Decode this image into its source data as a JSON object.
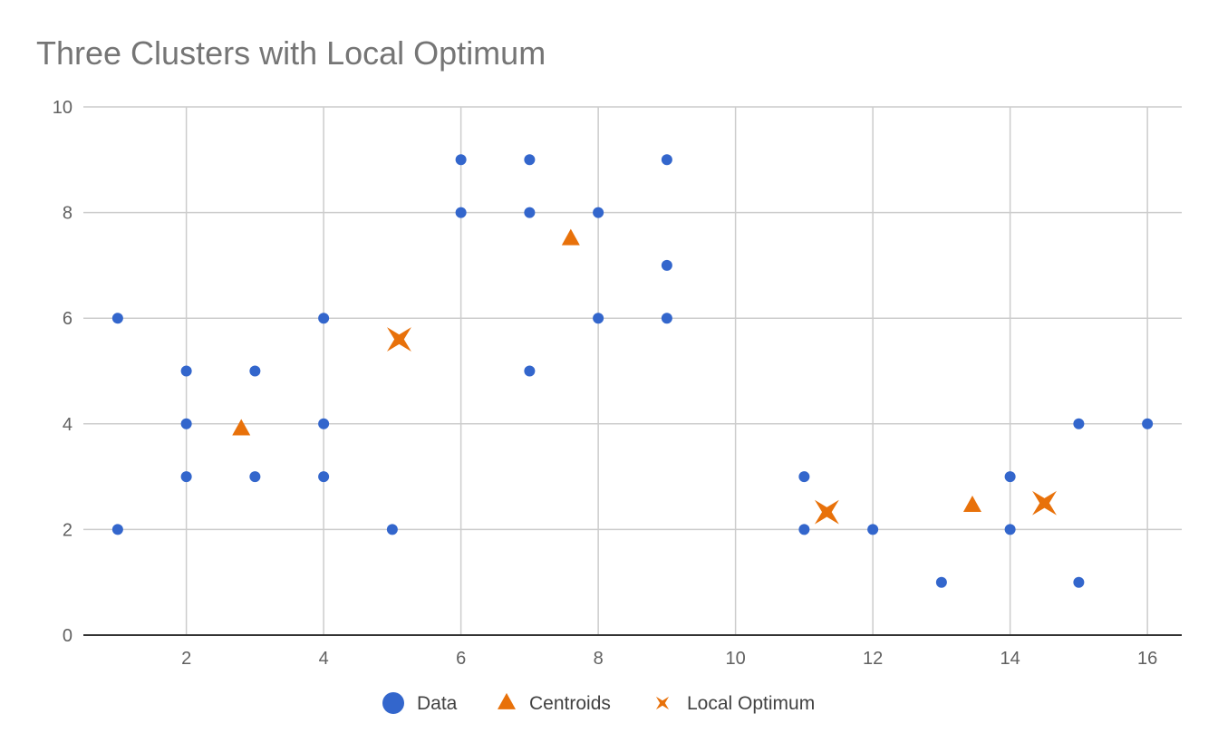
{
  "chart_data": {
    "type": "scatter",
    "title": "Three Clusters with Local Optimum",
    "xlabel": "",
    "ylabel": "",
    "xlim": [
      0.5,
      16.5
    ],
    "ylim": [
      0,
      10
    ],
    "x_ticks": [
      2,
      4,
      6,
      8,
      10,
      12,
      14,
      16
    ],
    "y_ticks": [
      0,
      2,
      4,
      6,
      8,
      10
    ],
    "grid": true,
    "legend_position": "bottom",
    "series": [
      {
        "name": "Data",
        "marker": "circle",
        "color": "#3366cc",
        "points": [
          [
            1,
            6
          ],
          [
            1,
            2
          ],
          [
            2,
            5
          ],
          [
            2,
            4
          ],
          [
            2,
            3
          ],
          [
            3,
            5
          ],
          [
            3,
            3
          ],
          [
            4,
            6
          ],
          [
            4,
            4
          ],
          [
            4,
            3
          ],
          [
            5,
            2
          ],
          [
            6,
            9
          ],
          [
            6,
            8
          ],
          [
            7,
            9
          ],
          [
            7,
            8
          ],
          [
            7,
            5
          ],
          [
            8,
            8
          ],
          [
            8,
            6
          ],
          [
            9,
            9
          ],
          [
            9,
            7
          ],
          [
            9,
            6
          ],
          [
            11,
            3
          ],
          [
            11,
            2
          ],
          [
            12,
            2
          ],
          [
            13,
            1
          ],
          [
            14,
            3
          ],
          [
            14,
            2
          ],
          [
            15,
            4
          ],
          [
            15,
            1
          ],
          [
            16,
            4
          ]
        ]
      },
      {
        "name": "Centroids",
        "marker": "triangle",
        "color": "#e8710a",
        "points": [
          [
            2.8,
            3.9
          ],
          [
            7.6,
            7.5
          ],
          [
            13.45,
            2.45
          ]
        ]
      },
      {
        "name": "Local Optimum",
        "marker": "star-x",
        "color": "#e8710a",
        "points": [
          [
            5.1,
            5.6
          ],
          [
            11.33,
            2.33
          ],
          [
            14.5,
            2.5
          ]
        ]
      }
    ]
  }
}
